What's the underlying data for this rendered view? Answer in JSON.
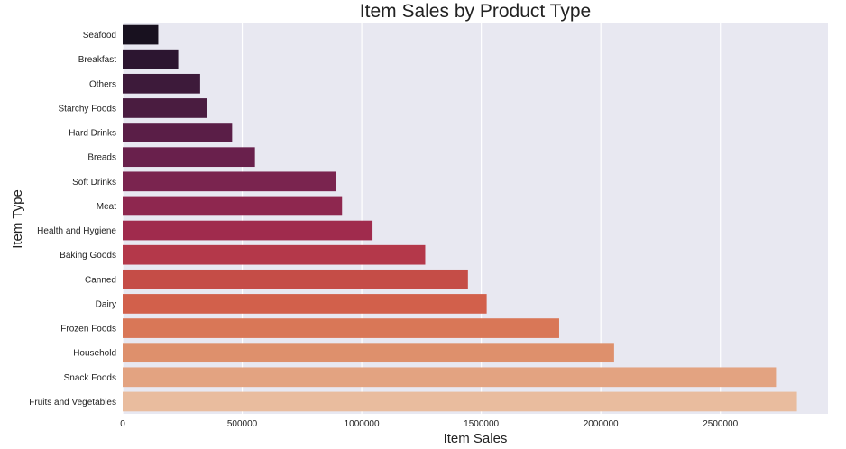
{
  "chart_data": {
    "type": "bar",
    "orientation": "horizontal",
    "title": "Item Sales by Product Type",
    "xlabel": "Item Sales",
    "ylabel": "Item Type",
    "xlim": [
      0,
      2950000
    ],
    "xticks": [
      "0",
      "500000",
      "1000000",
      "1500000",
      "2000000",
      "2500000"
    ],
    "grid": true,
    "categories": [
      "Seafood",
      "Breakfast",
      "Others",
      "Starchy Foods",
      "Hard Drinks",
      "Breads",
      "Soft Drinks",
      "Meat",
      "Health and Hygiene",
      "Baking Goods",
      "Canned",
      "Dairy",
      "Frozen Foods",
      "Household",
      "Snack Foods",
      "Fruits and Vegetables"
    ],
    "values": [
      148868,
      232299,
      324009,
      351401,
      457793,
      553237,
      892898,
      917566,
      1045200,
      1265525,
      1444151,
      1522594,
      1825735,
      2055494,
      2732786,
      2820060
    ],
    "bar_colors": [
      "#18111f",
      "#2c1530",
      "#3d1a3a",
      "#4a1c40",
      "#5a1e47",
      "#69204c",
      "#7a244f",
      "#8e274f",
      "#a02b4d",
      "#b4384a",
      "#c54d47",
      "#d2604b",
      "#d97757",
      "#de906c",
      "#e3a381",
      "#e9bc9e"
    ],
    "plot_background": "#e8e8f1",
    "grid_color": "#ffffff"
  }
}
